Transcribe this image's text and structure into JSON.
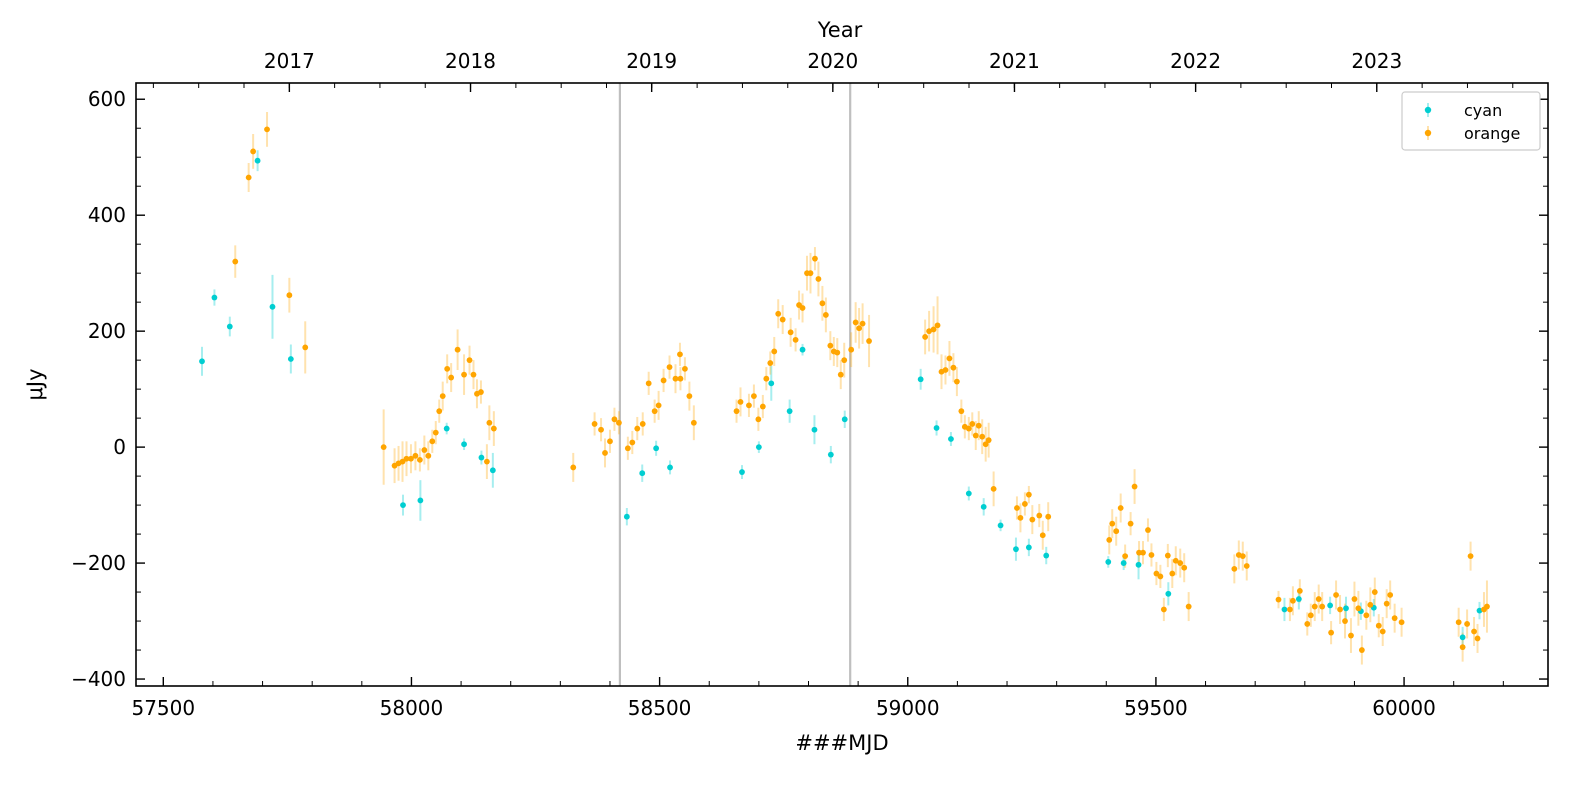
{
  "chart_data": {
    "type": "scatter",
    "xlabel": "###MJD",
    "ylabel": "μJy",
    "top_axis_label": "Year",
    "xlim": [
      57445,
      60290
    ],
    "ylim": [
      -412,
      628
    ],
    "x_ticks": [
      57500,
      58000,
      58500,
      59000,
      59500,
      60000
    ],
    "y_ticks": [
      -400,
      -200,
      0,
      200,
      400,
      600
    ],
    "y_tick_labels": [
      "−400",
      "−200",
      "0",
      "200",
      "400",
      "600"
    ],
    "top_ticks": [
      {
        "label": "2017",
        "mjd": 57754
      },
      {
        "label": "2018",
        "mjd": 58119
      },
      {
        "label": "2019",
        "mjd": 58484
      },
      {
        "label": "2020",
        "mjd": 58849
      },
      {
        "label": "2021",
        "mjd": 59215
      },
      {
        "label": "2022",
        "mjd": 59580
      },
      {
        "label": "2023",
        "mjd": 59945
      }
    ],
    "vertical_lines": [
      58420,
      58884
    ],
    "legend": {
      "position": "top-right"
    },
    "series": [
      {
        "name": "cyan",
        "color": "#00CED1",
        "points": [
          [
            57578,
            148,
            25
          ],
          [
            57603,
            258,
            14
          ],
          [
            57634,
            208,
            17
          ],
          [
            57690,
            494,
            18
          ],
          [
            57720,
            242,
            55
          ],
          [
            57757,
            152,
            25
          ],
          [
            57983,
            -100,
            18
          ],
          [
            58018,
            -92,
            35
          ],
          [
            58071,
            32,
            10
          ],
          [
            58106,
            5,
            10
          ],
          [
            58141,
            -18,
            12
          ],
          [
            58164,
            -40,
            30
          ],
          [
            58434,
            -120,
            15
          ],
          [
            58465,
            -45,
            15
          ],
          [
            58493,
            -2,
            13
          ],
          [
            58521,
            -35,
            12
          ],
          [
            58666,
            -43,
            12
          ],
          [
            58700,
            0,
            10
          ],
          [
            58725,
            110,
            30
          ],
          [
            58762,
            62,
            20
          ],
          [
            58788,
            168,
            10
          ],
          [
            58812,
            30,
            25
          ],
          [
            58845,
            -13,
            15
          ],
          [
            58873,
            48,
            15
          ],
          [
            59026,
            117,
            18
          ],
          [
            59058,
            33,
            13
          ],
          [
            59087,
            14,
            12
          ],
          [
            59123,
            -80,
            12
          ],
          [
            59153,
            -103,
            15
          ],
          [
            59187,
            -135,
            10
          ],
          [
            59218,
            -176,
            20
          ],
          [
            59244,
            -173,
            15
          ],
          [
            59279,
            -187,
            15
          ],
          [
            59404,
            -198,
            10
          ],
          [
            59435,
            -200,
            12
          ],
          [
            59465,
            -203,
            25
          ],
          [
            59525,
            -253,
            20
          ],
          [
            59759,
            -280,
            20
          ],
          [
            59788,
            -262,
            18
          ],
          [
            59851,
            -273,
            15
          ],
          [
            59883,
            -278,
            20
          ],
          [
            59913,
            -283,
            15
          ],
          [
            59939,
            -277,
            15
          ],
          [
            60118,
            -328,
            18
          ],
          [
            60152,
            -282,
            15
          ]
        ]
      },
      {
        "name": "orange",
        "color": "#FFA500",
        "points": [
          [
            57645,
            320,
            28
          ],
          [
            57672,
            465,
            25
          ],
          [
            57681,
            510,
            30
          ],
          [
            57709,
            548,
            30
          ],
          [
            57754,
            262,
            30
          ],
          [
            57786,
            172,
            45
          ],
          [
            57944,
            0,
            65
          ],
          [
            57966,
            -32,
            30
          ],
          [
            57974,
            -28,
            30
          ],
          [
            57982,
            -25,
            35
          ],
          [
            57990,
            -20,
            30
          ],
          [
            57999,
            -20,
            25
          ],
          [
            58008,
            -15,
            25
          ],
          [
            58017,
            -22,
            20
          ],
          [
            58026,
            -5,
            25
          ],
          [
            58034,
            -15,
            25
          ],
          [
            58042,
            10,
            20
          ],
          [
            58049,
            25,
            20
          ],
          [
            58056,
            62,
            20
          ],
          [
            58063,
            88,
            25
          ],
          [
            58072,
            135,
            25
          ],
          [
            58080,
            120,
            25
          ],
          [
            58093,
            168,
            35
          ],
          [
            58106,
            125,
            35
          ],
          [
            58117,
            150,
            25
          ],
          [
            58125,
            125,
            25
          ],
          [
            58132,
            92,
            25
          ],
          [
            58140,
            95,
            20
          ],
          [
            58152,
            -25,
            30
          ],
          [
            58157,
            42,
            30
          ],
          [
            58166,
            32,
            30
          ],
          [
            58326,
            -35,
            25
          ],
          [
            58369,
            40,
            20
          ],
          [
            58382,
            30,
            20
          ],
          [
            58390,
            -10,
            25
          ],
          [
            58400,
            10,
            20
          ],
          [
            58409,
            48,
            20
          ],
          [
            58418,
            42,
            20
          ],
          [
            58436,
            -2,
            20
          ],
          [
            58445,
            8,
            20
          ],
          [
            58455,
            32,
            20
          ],
          [
            58466,
            40,
            20
          ],
          [
            58478,
            110,
            20
          ],
          [
            58490,
            62,
            20
          ],
          [
            58498,
            72,
            25
          ],
          [
            58508,
            115,
            20
          ],
          [
            58520,
            138,
            20
          ],
          [
            58532,
            118,
            25
          ],
          [
            58541,
            160,
            20
          ],
          [
            58551,
            135,
            20
          ],
          [
            58560,
            88,
            25
          ],
          [
            58569,
            42,
            30
          ],
          [
            58542,
            118,
            20
          ],
          [
            58655,
            62,
            20
          ],
          [
            58663,
            78,
            25
          ],
          [
            58680,
            72,
            20
          ],
          [
            58690,
            88,
            20
          ],
          [
            58699,
            48,
            20
          ],
          [
            58708,
            70,
            20
          ],
          [
            58715,
            118,
            20
          ],
          [
            58723,
            145,
            20
          ],
          [
            58731,
            165,
            25
          ],
          [
            58739,
            230,
            25
          ],
          [
            58748,
            220,
            25
          ],
          [
            58764,
            198,
            25
          ],
          [
            58774,
            185,
            20
          ],
          [
            58781,
            245,
            25
          ],
          [
            58788,
            240,
            25
          ],
          [
            58797,
            300,
            30
          ],
          [
            58804,
            300,
            35
          ],
          [
            58813,
            325,
            20
          ],
          [
            58820,
            290,
            30
          ],
          [
            58828,
            248,
            30
          ],
          [
            58835,
            228,
            30
          ],
          [
            58844,
            175,
            25
          ],
          [
            58851,
            165,
            25
          ],
          [
            58858,
            163,
            25
          ],
          [
            58865,
            125,
            25
          ],
          [
            58872,
            150,
            30
          ],
          [
            58886,
            168,
            30
          ],
          [
            58895,
            215,
            35
          ],
          [
            58902,
            205,
            35
          ],
          [
            58909,
            213,
            35
          ],
          [
            58922,
            183,
            45
          ],
          [
            59035,
            190,
            30
          ],
          [
            59043,
            200,
            35
          ],
          [
            59052,
            203,
            40
          ],
          [
            59060,
            210,
            50
          ],
          [
            59068,
            130,
            30
          ],
          [
            59076,
            133,
            25
          ],
          [
            59084,
            153,
            30
          ],
          [
            59092,
            137,
            25
          ],
          [
            59099,
            113,
            25
          ],
          [
            59108,
            62,
            20
          ],
          [
            59115,
            35,
            20
          ],
          [
            59123,
            32,
            20
          ],
          [
            59130,
            40,
            20
          ],
          [
            59137,
            20,
            25
          ],
          [
            59143,
            37,
            25
          ],
          [
            59150,
            18,
            30
          ],
          [
            59157,
            5,
            30
          ],
          [
            59163,
            12,
            30
          ],
          [
            59173,
            -72,
            30
          ],
          [
            59220,
            -105,
            20
          ],
          [
            59227,
            -122,
            25
          ],
          [
            59236,
            -98,
            20
          ],
          [
            59244,
            -82,
            15
          ],
          [
            59251,
            -125,
            25
          ],
          [
            59265,
            -118,
            20
          ],
          [
            59272,
            -152,
            25
          ],
          [
            59283,
            -120,
            25
          ],
          [
            59406,
            -160,
            25
          ],
          [
            59412,
            -132,
            25
          ],
          [
            59420,
            -145,
            25
          ],
          [
            59429,
            -105,
            25
          ],
          [
            59438,
            -188,
            20
          ],
          [
            59449,
            -132,
            20
          ],
          [
            59457,
            -68,
            30
          ],
          [
            59466,
            -182,
            20
          ],
          [
            59474,
            -182,
            20
          ],
          [
            59484,
            -143,
            20
          ],
          [
            59491,
            -186,
            20
          ],
          [
            59501,
            -218,
            20
          ],
          [
            59509,
            -223,
            20
          ],
          [
            59516,
            -280,
            20
          ],
          [
            59524,
            -187,
            20
          ],
          [
            59533,
            -218,
            25
          ],
          [
            59540,
            -196,
            25
          ],
          [
            59549,
            -200,
            25
          ],
          [
            59557,
            -208,
            25
          ],
          [
            59566,
            -275,
            25
          ],
          [
            59658,
            -210,
            25
          ],
          [
            59667,
            -186,
            25
          ],
          [
            59675,
            -188,
            25
          ],
          [
            59683,
            -205,
            25
          ],
          [
            59747,
            -263,
            15
          ],
          [
            59770,
            -280,
            20
          ],
          [
            59776,
            -265,
            25
          ],
          [
            59790,
            -248,
            20
          ],
          [
            59805,
            -305,
            20
          ],
          [
            59812,
            -290,
            20
          ],
          [
            59820,
            -275,
            25
          ],
          [
            59828,
            -262,
            25
          ],
          [
            59835,
            -275,
            25
          ],
          [
            59853,
            -320,
            20
          ],
          [
            59863,
            -255,
            25
          ],
          [
            59871,
            -280,
            25
          ],
          [
            59881,
            -300,
            30
          ],
          [
            59893,
            -325,
            30
          ],
          [
            59900,
            -262,
            30
          ],
          [
            59908,
            -278,
            30
          ],
          [
            59915,
            -350,
            25
          ],
          [
            59924,
            -290,
            25
          ],
          [
            59932,
            -272,
            30
          ],
          [
            59941,
            -250,
            25
          ],
          [
            59949,
            -308,
            20
          ],
          [
            59957,
            -318,
            25
          ],
          [
            59965,
            -270,
            25
          ],
          [
            59972,
            -255,
            25
          ],
          [
            59981,
            -295,
            25
          ],
          [
            59995,
            -302,
            25
          ],
          [
            60110,
            -302,
            25
          ],
          [
            60118,
            -345,
            25
          ],
          [
            60127,
            -305,
            25
          ],
          [
            60134,
            -188,
            25
          ],
          [
            60141,
            -318,
            25
          ],
          [
            60148,
            -330,
            25
          ],
          [
            60161,
            -280,
            30
          ],
          [
            60167,
            -275,
            45
          ]
        ]
      }
    ]
  }
}
